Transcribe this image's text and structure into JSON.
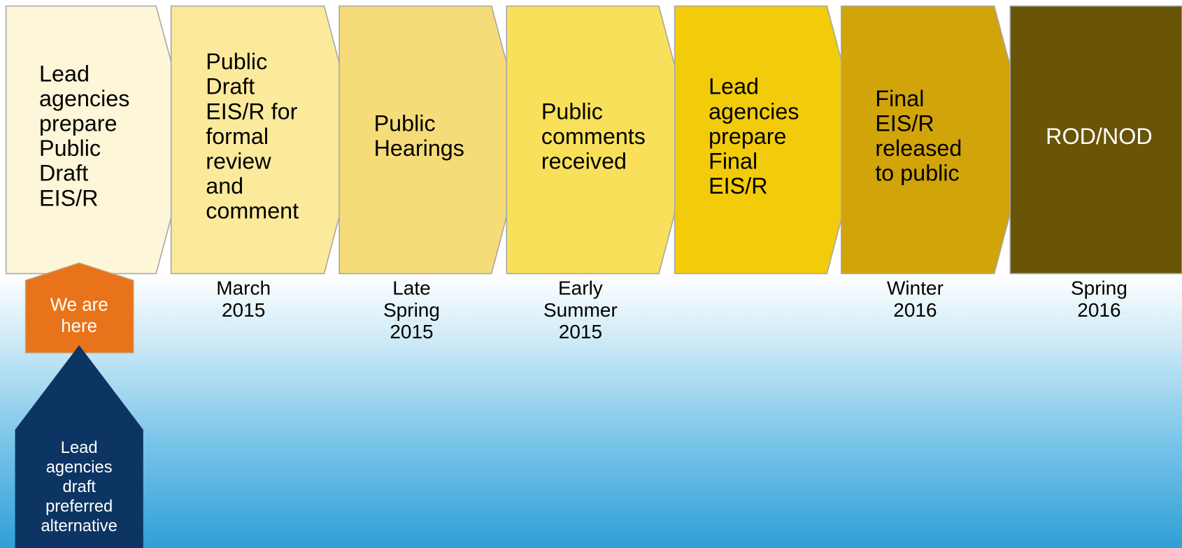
{
  "steps": [
    {
      "label": [
        "Lead",
        "agencies",
        "prepare",
        "Public",
        "Draft",
        "EIS/R"
      ]
    },
    {
      "label": [
        "Public",
        "Draft",
        "EIS/R for",
        "formal",
        "review",
        "and",
        "comment"
      ],
      "date": [
        "March",
        "2015"
      ]
    },
    {
      "label": [
        "Public",
        "Hearings"
      ],
      "date": [
        "Late",
        "Spring",
        "2015"
      ]
    },
    {
      "label": [
        "Public",
        "comments",
        "received"
      ],
      "date": [
        "Early",
        "Summer",
        "2015"
      ]
    },
    {
      "label": [
        "Lead",
        "agencies",
        "prepare",
        "Final",
        "EIS/R"
      ]
    },
    {
      "label": [
        "Final",
        "EIS/R",
        "released",
        "to public"
      ],
      "date": [
        "Winter",
        "2016"
      ]
    },
    {
      "label": [
        "ROD/NOD"
      ],
      "date": [
        "Spring",
        "2016"
      ]
    }
  ],
  "marker": {
    "label": [
      "We are",
      "here"
    ]
  },
  "note": {
    "label": [
      "Lead",
      "agencies",
      "draft",
      "preferred",
      "alternative"
    ]
  }
}
